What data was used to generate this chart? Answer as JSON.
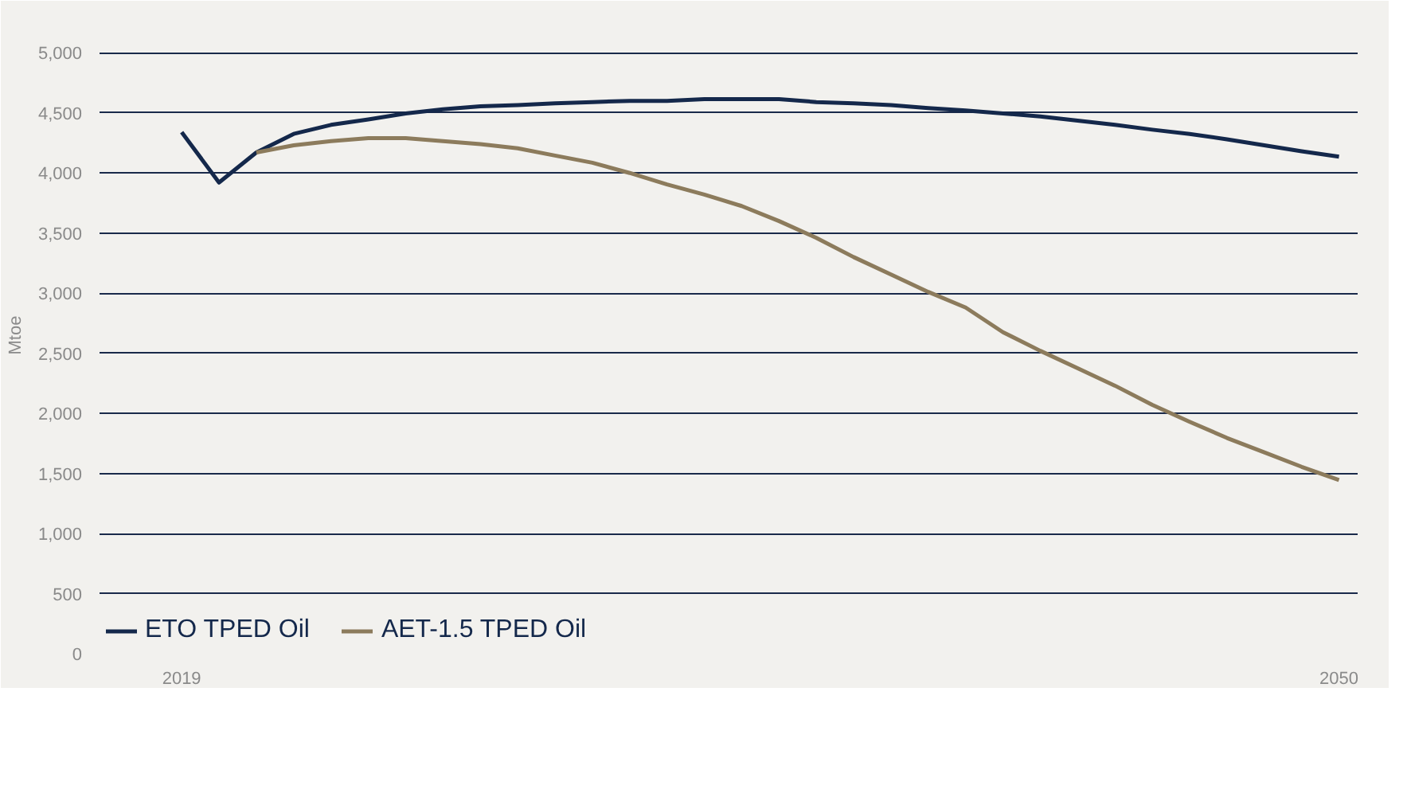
{
  "chart_data": {
    "type": "line",
    "ylabel": "Mtoe",
    "x": [
      2019,
      2020,
      2021,
      2022,
      2023,
      2024,
      2025,
      2026,
      2027,
      2028,
      2029,
      2030,
      2031,
      2032,
      2033,
      2034,
      2035,
      2036,
      2037,
      2038,
      2039,
      2040,
      2041,
      2042,
      2043,
      2044,
      2045,
      2046,
      2047,
      2048,
      2049,
      2050
    ],
    "series": [
      {
        "name": "ETO TPED Oil",
        "color": "#14284b",
        "values": [
          4340,
          3920,
          4170,
          4325,
          4400,
          4445,
          4495,
          4530,
          4555,
          4565,
          4580,
          4590,
          4600,
          4600,
          4615,
          4615,
          4615,
          4590,
          4580,
          4565,
          4540,
          4520,
          4495,
          4470,
          4435,
          4400,
          4360,
          4325,
          4280,
          4230,
          4180,
          4135
        ]
      },
      {
        "name": "AET-1.5 TPED Oil",
        "color": "#8c7b5c",
        "values": [
          null,
          null,
          4170,
          4230,
          4265,
          4290,
          4290,
          4265,
          4240,
          4205,
          4145,
          4085,
          4000,
          3905,
          3820,
          3725,
          3600,
          3460,
          3300,
          3155,
          3010,
          2880,
          2675,
          2520,
          2375,
          2230,
          2070,
          1930,
          1795,
          1675,
          1555,
          1445
        ]
      }
    ],
    "xlim": [
      2016.8,
      2050.5
    ],
    "xticks": [
      2019,
      2050
    ],
    "ylim": [
      0,
      5300
    ],
    "yticks": [
      0,
      {
        "value": 500,
        "label": "500"
      },
      {
        "value": 1000,
        "label": "1,000"
      },
      {
        "value": 1500,
        "label": "1,500"
      },
      {
        "value": 2000,
        "label": "2,000"
      },
      {
        "value": 2500,
        "label": "2,500"
      },
      {
        "value": 3000,
        "label": "3,000"
      },
      {
        "value": 3500,
        "label": "3,500"
      },
      {
        "value": 4000,
        "label": "4,000"
      },
      {
        "value": 4500,
        "label": "4,500"
      },
      {
        "value": 5000,
        "label": "5,000"
      }
    ],
    "grid": "y",
    "legend": "bottom left",
    "marker": "none",
    "line_style": "solid"
  }
}
